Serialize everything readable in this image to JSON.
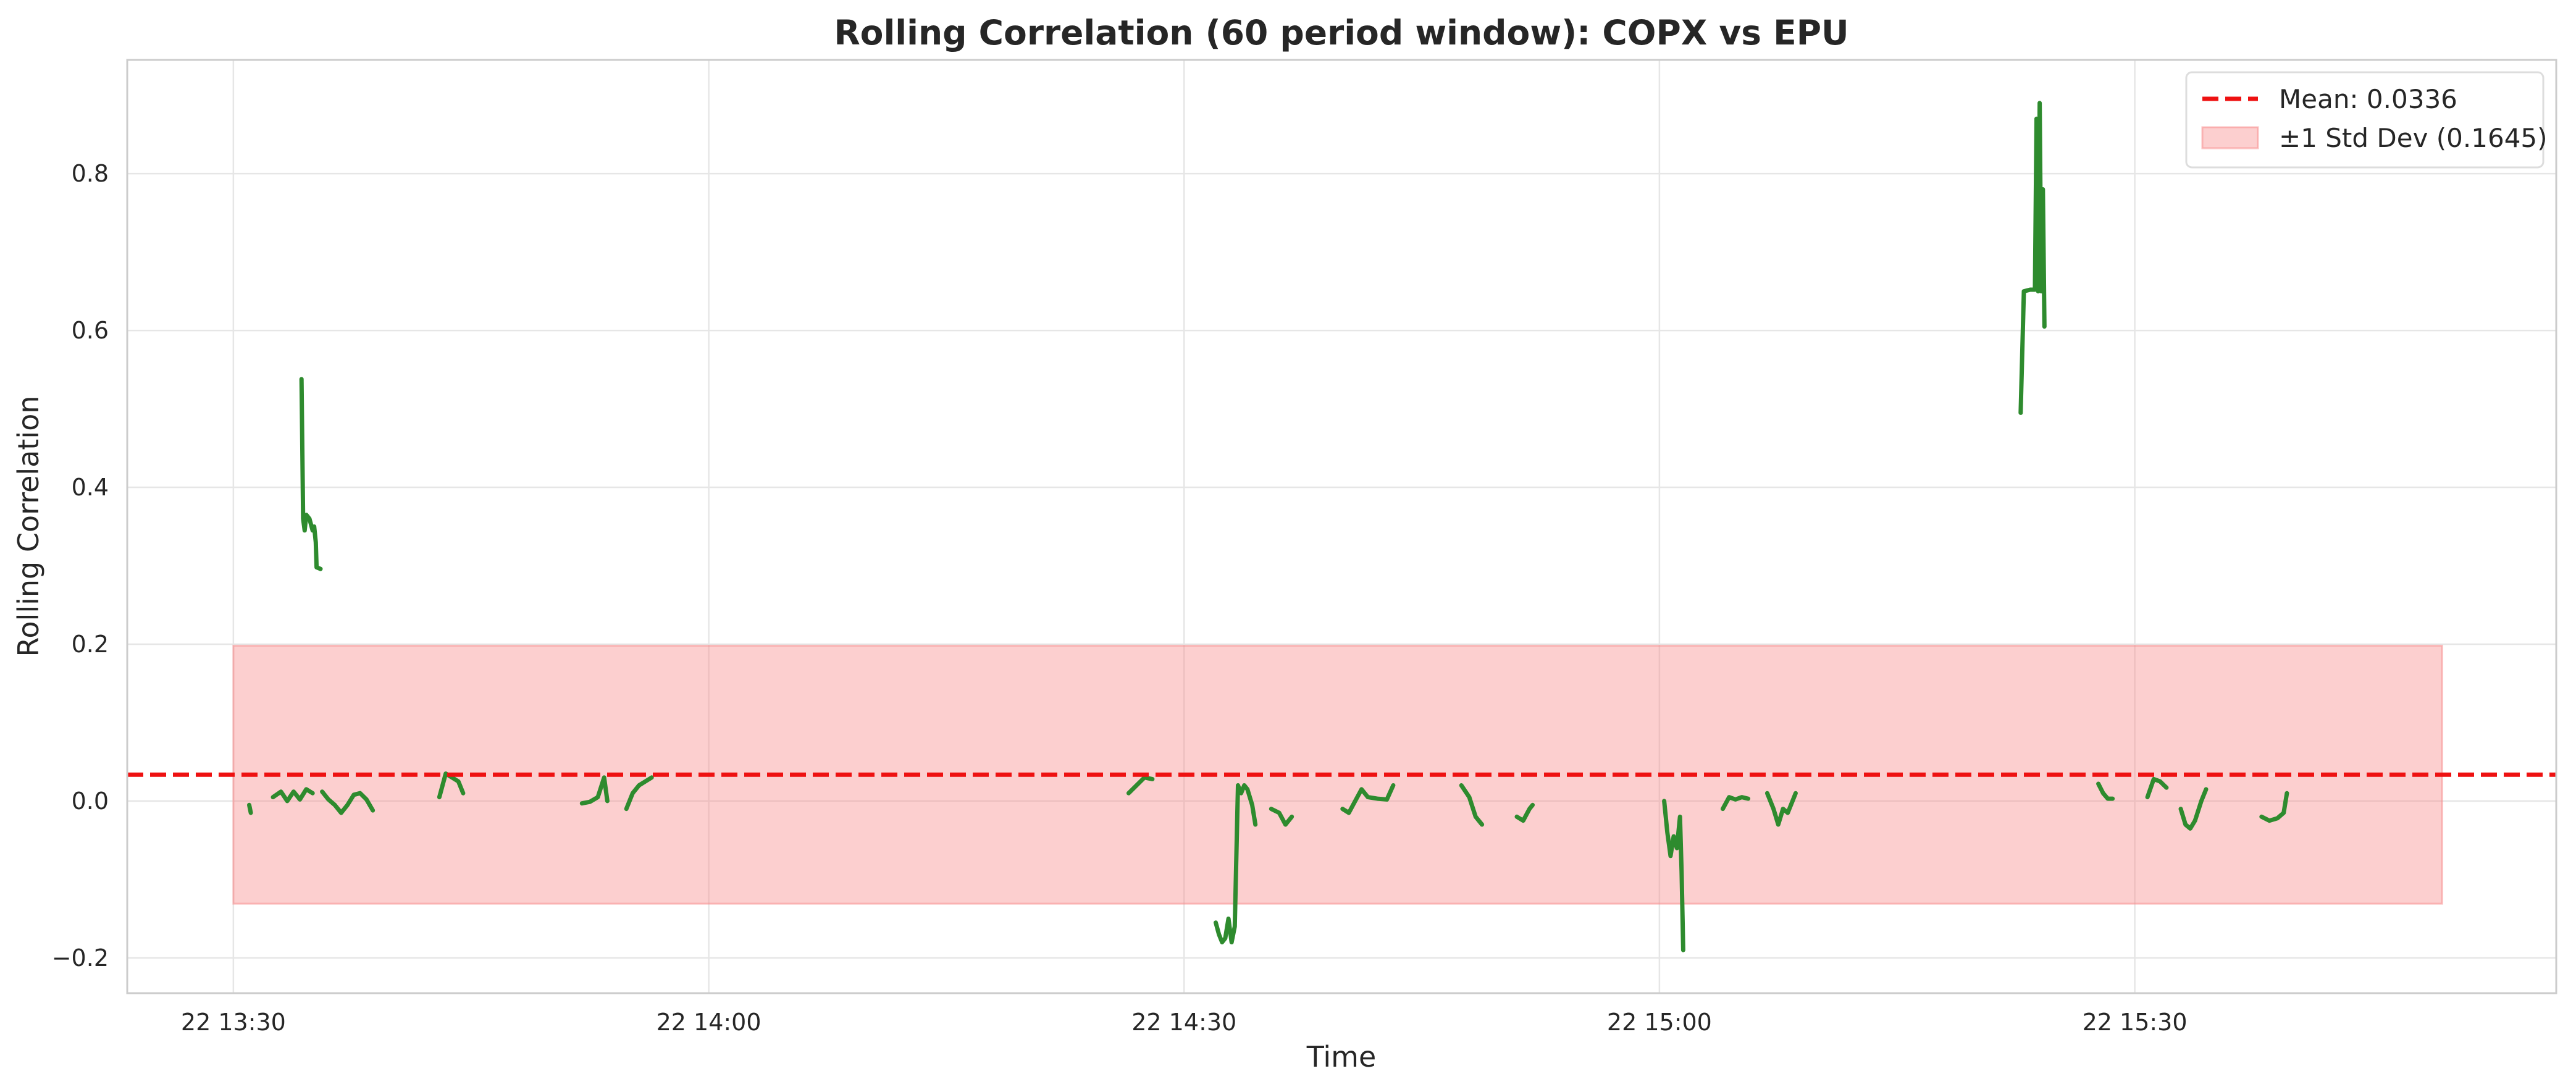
{
  "chart_data": {
    "type": "line",
    "title": "Rolling Correlation (60 period window): COPX vs EPU",
    "xlabel": "Time",
    "ylabel": "Rolling Correlation",
    "x_ticks": [
      "22 13:30",
      "22 14:00",
      "22 14:30",
      "22 15:00",
      "22 15:30"
    ],
    "x_tick_minutes": [
      810,
      840,
      870,
      900,
      930
    ],
    "xlim_minutes": [
      803.3,
      956.6
    ],
    "y_ticks": [
      -0.2,
      0.0,
      0.2,
      0.4,
      0.6,
      0.8
    ],
    "y_tick_labels": [
      "−0.2",
      "0.0",
      "0.2",
      "0.4",
      "0.6",
      "0.8"
    ],
    "ylim": [
      -0.245,
      0.945
    ],
    "grid": true,
    "legend_position": "top-right",
    "colors": {
      "series": "#2e8b2e",
      "mean": "#ee1111",
      "band": "#f88888"
    },
    "mean": {
      "label": "Mean: 0.0336",
      "value": 0.0336
    },
    "band": {
      "label": "±1 Std Dev (0.1645)",
      "lower": -0.1309,
      "upper": 0.1981,
      "x_start": 810.0,
      "x_end": 949.4
    },
    "series": [
      {
        "segments": [
          [
            [
              811.0,
              -0.005
            ],
            [
              811.1,
              -0.015
            ]
          ],
          [
            [
              812.5,
              0.005
            ],
            [
              813.0,
              0.012
            ],
            [
              813.4,
              0.0
            ],
            [
              813.8,
              0.012
            ],
            [
              814.2,
              0.002
            ],
            [
              814.6,
              0.015
            ],
            [
              815.0,
              0.01
            ]
          ],
          [
            [
              814.3,
              0.538
            ],
            [
              814.35,
              0.45
            ],
            [
              814.4,
              0.36
            ],
            [
              814.5,
              0.345
            ],
            [
              814.6,
              0.365
            ],
            [
              814.8,
              0.36
            ],
            [
              815.0,
              0.345
            ],
            [
              815.1,
              0.35
            ],
            [
              815.2,
              0.33
            ],
            [
              815.25,
              0.298
            ],
            [
              815.5,
              0.296
            ]
          ],
          [
            [
              815.6,
              0.012
            ],
            [
              816.0,
              0.002
            ],
            [
              816.4,
              -0.005
            ],
            [
              816.8,
              -0.015
            ],
            [
              817.2,
              -0.005
            ],
            [
              817.6,
              0.008
            ],
            [
              818.0,
              0.01
            ],
            [
              818.4,
              0.002
            ],
            [
              818.8,
              -0.012
            ]
          ],
          [
            [
              823.0,
              0.005
            ],
            [
              823.4,
              0.035
            ],
            [
              823.8,
              0.03
            ],
            [
              824.2,
              0.025
            ],
            [
              824.5,
              0.01
            ]
          ],
          [
            [
              832.0,
              -0.003
            ],
            [
              832.5,
              -0.001
            ],
            [
              833.0,
              0.005
            ],
            [
              833.4,
              0.03
            ],
            [
              833.6,
              0.0
            ]
          ],
          [
            [
              834.8,
              -0.01
            ],
            [
              835.2,
              0.01
            ],
            [
              835.6,
              0.02
            ],
            [
              836.0,
              0.025
            ],
            [
              836.4,
              0.03
            ]
          ],
          [
            [
              866.5,
              0.01
            ],
            [
              867.0,
              0.02
            ],
            [
              867.5,
              0.03
            ],
            [
              868.0,
              0.028
            ]
          ],
          [
            [
              872.0,
              -0.155
            ],
            [
              872.2,
              -0.17
            ],
            [
              872.4,
              -0.18
            ],
            [
              872.6,
              -0.175
            ],
            [
              872.8,
              -0.15
            ],
            [
              873.0,
              -0.18
            ],
            [
              873.2,
              -0.16
            ],
            [
              873.3,
              -0.07
            ],
            [
              873.4,
              0.02
            ],
            [
              873.6,
              0.01
            ],
            [
              873.8,
              0.02
            ],
            [
              874.0,
              0.015
            ],
            [
              874.3,
              -0.005
            ],
            [
              874.5,
              -0.03
            ]
          ],
          [
            [
              875.5,
              -0.01
            ],
            [
              876.0,
              -0.015
            ],
            [
              876.4,
              -0.03
            ],
            [
              876.8,
              -0.02
            ]
          ],
          [
            [
              880.0,
              -0.01
            ],
            [
              880.4,
              -0.015
            ],
            [
              880.8,
              0.0
            ],
            [
              881.2,
              0.015
            ],
            [
              881.6,
              0.005
            ],
            [
              882.2,
              0.003
            ],
            [
              882.8,
              0.002
            ],
            [
              883.2,
              0.02
            ]
          ],
          [
            [
              887.5,
              0.02
            ],
            [
              888.0,
              0.005
            ],
            [
              888.4,
              -0.02
            ],
            [
              888.8,
              -0.03
            ]
          ],
          [
            [
              891.0,
              -0.02
            ],
            [
              891.4,
              -0.025
            ],
            [
              891.8,
              -0.01
            ],
            [
              892.0,
              -0.005
            ]
          ],
          [
            [
              900.3,
              0.0
            ],
            [
              900.5,
              -0.04
            ],
            [
              900.7,
              -0.07
            ],
            [
              900.9,
              -0.045
            ],
            [
              901.1,
              -0.06
            ],
            [
              901.3,
              -0.02
            ],
            [
              901.4,
              -0.09
            ],
            [
              901.5,
              -0.19
            ]
          ],
          [
            [
              904.0,
              -0.01
            ],
            [
              904.4,
              0.005
            ],
            [
              904.8,
              0.002
            ],
            [
              905.2,
              0.005
            ],
            [
              905.6,
              0.003
            ]
          ],
          [
            [
              906.8,
              0.01
            ],
            [
              907.2,
              -0.01
            ],
            [
              907.5,
              -0.03
            ],
            [
              907.8,
              -0.01
            ],
            [
              908.1,
              -0.015
            ],
            [
              908.4,
              0.0
            ],
            [
              908.6,
              0.01
            ]
          ],
          [
            [
              922.8,
              0.495
            ],
            [
              923.0,
              0.65
            ],
            [
              923.4,
              0.652
            ],
            [
              923.7,
              0.652
            ],
            [
              923.8,
              0.87
            ],
            [
              923.9,
              0.65
            ],
            [
              924.0,
              0.89
            ],
            [
              924.1,
              0.65
            ],
            [
              924.2,
              0.78
            ],
            [
              924.3,
              0.605
            ]
          ],
          [
            [
              927.7,
              0.022
            ],
            [
              928.0,
              0.01
            ],
            [
              928.3,
              0.003
            ],
            [
              928.6,
              0.003
            ]
          ],
          [
            [
              930.8,
              0.005
            ],
            [
              931.2,
              0.028
            ],
            [
              931.6,
              0.025
            ],
            [
              932.0,
              0.017
            ]
          ],
          [
            [
              932.9,
              -0.01
            ],
            [
              933.2,
              -0.03
            ],
            [
              933.5,
              -0.035
            ],
            [
              933.8,
              -0.025
            ],
            [
              934.2,
              0.0
            ],
            [
              934.5,
              0.015
            ]
          ],
          [
            [
              938.0,
              -0.02
            ],
            [
              938.5,
              -0.025
            ],
            [
              939.0,
              -0.022
            ],
            [
              939.4,
              -0.015
            ],
            [
              939.6,
              0.01
            ]
          ]
        ]
      }
    ]
  }
}
